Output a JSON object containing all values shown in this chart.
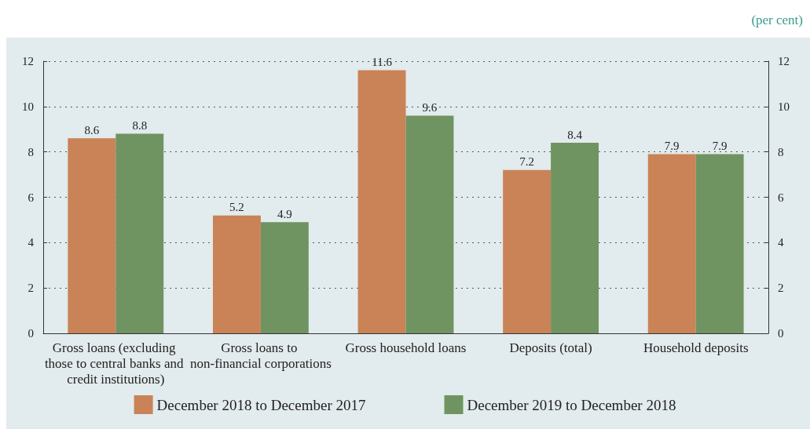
{
  "chart_data": {
    "type": "bar",
    "annotations": [
      "(per cent)"
    ],
    "categories": [
      "Gross loans (excluding those to central banks and credit institutions)",
      "Gross loans to non-financial corporations",
      "Gross household loans",
      "Deposits (total)",
      "Household deposits"
    ],
    "series": [
      {
        "name": "December 2018 to December 2017",
        "color": "#c98357",
        "values": [
          8.6,
          5.2,
          11.6,
          7.2,
          7.9
        ]
      },
      {
        "name": "December 2019 to December 2018",
        "color": "#6f9461",
        "values": [
          8.8,
          4.9,
          9.6,
          8.4,
          7.9
        ]
      }
    ],
    "ylim": [
      0,
      12
    ],
    "yticks": [
      0,
      2,
      4,
      6,
      8,
      10,
      12
    ],
    "y2lim": [
      0,
      12
    ],
    "y2ticks": [
      0,
      2,
      4,
      6,
      8,
      10,
      12
    ],
    "grid": "y",
    "legend": "bottom",
    "data_labels": true
  }
}
